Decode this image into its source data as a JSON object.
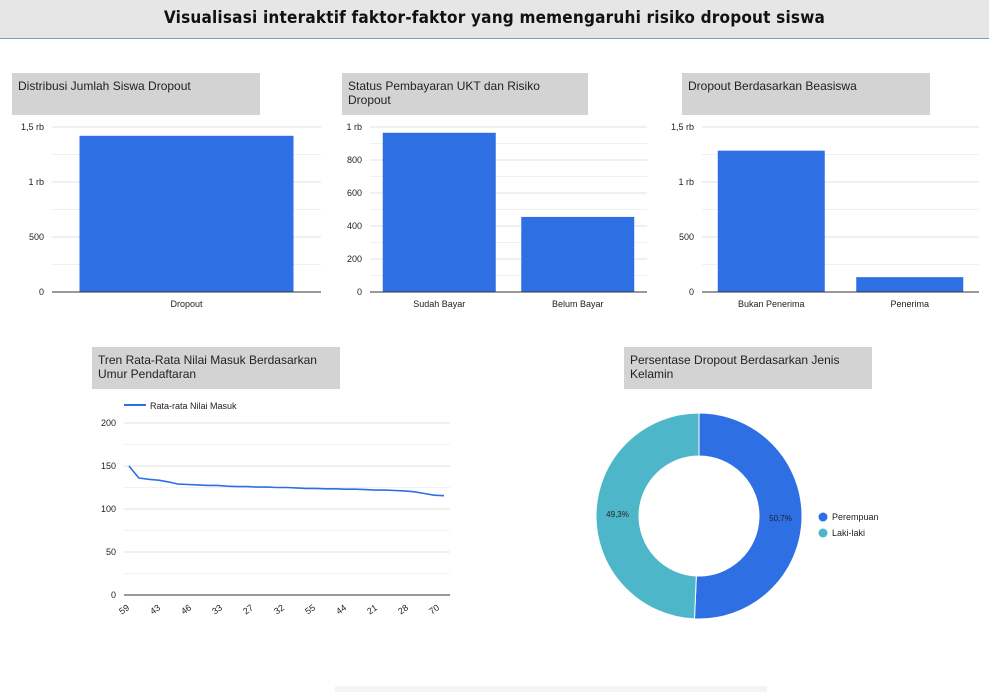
{
  "page_title": "Visualisasi interaktif faktor-faktor yang memengaruhi risiko dropout siswa",
  "colors": {
    "blue": "#2f6fe4",
    "teal": "#4db6c9",
    "title_bg": "#d3d3d3"
  },
  "chart_data": [
    {
      "id": "c1",
      "type": "bar",
      "title": "Distribusi Jumlah Siswa Dropout",
      "categories": [
        "Dropout"
      ],
      "values": [
        1420
      ],
      "ylim": [
        0,
        1500
      ],
      "yticks": [
        0,
        500,
        1000,
        1500
      ],
      "ytick_labels": [
        "0",
        "500",
        "1 rb",
        "1,5 rb"
      ],
      "grid": true
    },
    {
      "id": "c2",
      "type": "bar",
      "title": "Status Pembayaran UKT dan Risiko Dropout",
      "categories": [
        "Sudah Bayar",
        "Belum Bayar"
      ],
      "values": [
        965,
        455
      ],
      "ylim": [
        0,
        1000
      ],
      "yticks": [
        0,
        200,
        400,
        600,
        800,
        1000
      ],
      "ytick_labels": [
        "0",
        "200",
        "400",
        "600",
        "800",
        "1 rb"
      ],
      "grid": true
    },
    {
      "id": "c3",
      "type": "bar",
      "title": "Dropout Berdasarkan Beasiswa",
      "categories": [
        "Bukan Penerima",
        "Penerima"
      ],
      "values": [
        1285,
        135
      ],
      "ylim": [
        0,
        1500
      ],
      "yticks": [
        0,
        500,
        1000,
        1500
      ],
      "ytick_labels": [
        "0",
        "500",
        "1 rb",
        "1,5 rb"
      ],
      "grid": true
    },
    {
      "id": "c4",
      "type": "line",
      "title": "Tren Rata-Rata Nilai Masuk Berdasarkan Umur Pendaftaran",
      "legend": "top-left",
      "series": [
        {
          "name": "Rata-rata Nilai Masuk",
          "values": [
            150,
            136,
            134.5,
            133.5,
            131.5,
            129,
            128.5,
            128,
            127.5,
            127.5,
            126.5,
            126,
            126,
            125.5,
            125.5,
            125,
            125,
            124.5,
            124,
            124,
            123.5,
            123.5,
            123,
            123,
            122.5,
            122,
            122,
            121.5,
            121,
            120,
            118,
            116,
            115.5
          ]
        }
      ],
      "xtick_labels": [
        "59",
        "43",
        "46",
        "33",
        "27",
        "32",
        "55",
        "44",
        "21",
        "28",
        "70"
      ],
      "ylim": [
        0,
        200
      ],
      "yticks": [
        0,
        50,
        100,
        150,
        200
      ],
      "ytick_labels": [
        "0",
        "50",
        "100",
        "150",
        "200"
      ],
      "grid": true
    },
    {
      "id": "c5",
      "type": "pie",
      "title": "Persentase Dropout Berdasarkan Jenis Kelamin",
      "donut": true,
      "legend": "right",
      "slices": [
        {
          "label": "Perempuan",
          "value": 50.7,
          "value_label": "50,7%"
        },
        {
          "label": "Laki-laki",
          "value": 49.3,
          "value_label": "49,3%"
        }
      ]
    }
  ]
}
